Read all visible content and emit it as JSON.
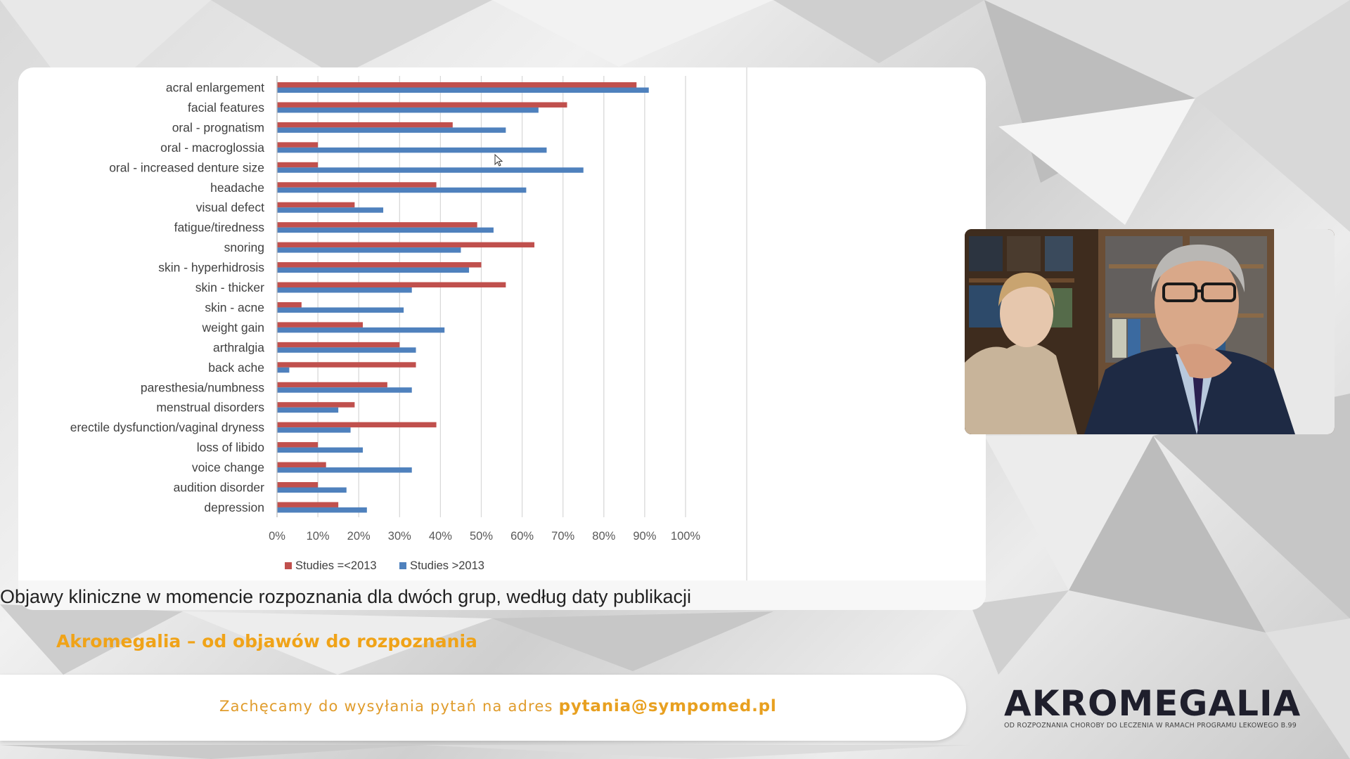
{
  "slide": {
    "caption": "Objawy kliniczne w momencie rozpoznania dla dwóch grup, według daty publikacji"
  },
  "subtitle": "Akromegalia – od objawów do rozpoznania",
  "bottom_bar": {
    "text": "Zachęcamy do wysyłania pytań na adres",
    "email": "pytania@sympomed.pl"
  },
  "logo": {
    "title": "AKROMEGALIA",
    "subtitle": "OD ROZPOZNANIA CHOROBY DO LECZENIA W RAMACH PROGRAMU LEKOWEGO B.99"
  },
  "colors": {
    "series1": "#c0504d",
    "series2": "#4f81bd",
    "accent": "#f0a318"
  },
  "chart_data": {
    "type": "bar",
    "orientation": "horizontal",
    "title": "",
    "xlim": [
      0,
      100
    ],
    "x_ticks": [
      "0%",
      "10%",
      "20%",
      "30%",
      "40%",
      "50%",
      "60%",
      "70%",
      "80%",
      "90%",
      "100%"
    ],
    "grid": "vertical",
    "legend_position": "bottom",
    "categories": [
      "acral enlargement",
      "facial features",
      "oral - prognatism",
      "oral - macroglossia",
      "oral - increased denture size",
      "headache",
      "visual defect",
      "fatigue/tiredness",
      "snoring",
      "skin - hyperhidrosis",
      "skin - thicker",
      "skin - acne",
      "weight gain",
      "arthralgia",
      "back ache",
      "paresthesia/numbness",
      "menstrual disorders",
      "erectile dysfunction/vaginal dryness",
      "loss of libido",
      "voice change",
      "audition disorder",
      "depression"
    ],
    "series": [
      {
        "name": "Studies =<2013",
        "color": "#c0504d",
        "values": [
          88,
          71,
          43,
          10,
          10,
          39,
          19,
          49,
          63,
          50,
          56,
          6,
          21,
          30,
          34,
          27,
          19,
          39,
          10,
          12,
          10,
          15
        ]
      },
      {
        "name": "Studies >2013",
        "color": "#4f81bd",
        "values": [
          91,
          64,
          56,
          66,
          75,
          61,
          26,
          53,
          45,
          47,
          33,
          31,
          41,
          34,
          3,
          33,
          15,
          18,
          21,
          33,
          17,
          22
        ]
      }
    ]
  }
}
